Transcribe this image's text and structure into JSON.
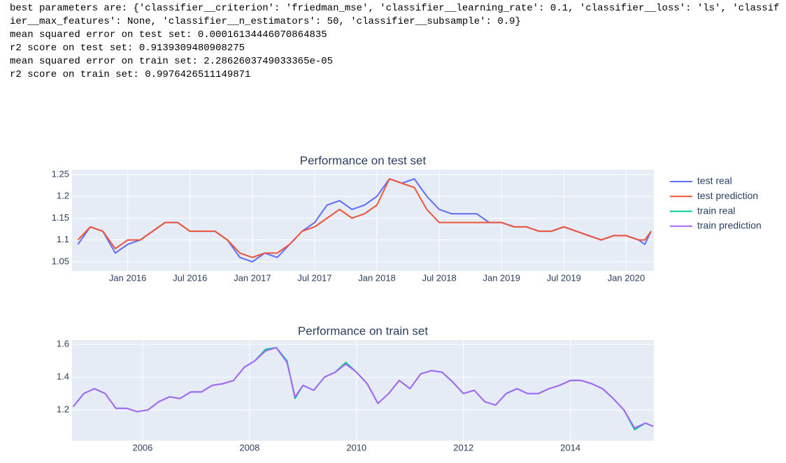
{
  "output": [
    "best parameters are: {'classifier__criterion': 'friedman_mse', 'classifier__learning_rate': 0.1, 'classifier__loss': 'ls', 'classifier__max_features': None, 'classifier__n_estimators': 50, 'classifier__subsample': 0.9}",
    "mean squared error on test set: 0.00016134446070864835",
    "r2 score on test set: 0.9139309480908275",
    "mean squared error on train set: 2.2862603749033365e-05",
    "r2 score on train set: 0.9976426511149871"
  ],
  "chart_data": [
    {
      "type": "line",
      "title": "Performance on test set",
      "x": [
        2015.6,
        2015.7,
        2015.8,
        2015.9,
        2016.0,
        2016.1,
        2016.2,
        2016.3,
        2016.4,
        2016.5,
        2016.6,
        2016.7,
        2016.8,
        2016.9,
        2017.0,
        2017.1,
        2017.2,
        2017.3,
        2017.4,
        2017.5,
        2017.6,
        2017.7,
        2017.8,
        2017.9,
        2018.0,
        2018.1,
        2018.2,
        2018.3,
        2018.4,
        2018.5,
        2018.6,
        2018.7,
        2018.8,
        2018.9,
        2019.0,
        2019.1,
        2019.2,
        2019.3,
        2019.4,
        2019.5,
        2019.6,
        2019.7,
        2019.8,
        2019.9,
        2020.0,
        2020.1,
        2020.15,
        2020.2
      ],
      "series": [
        {
          "name": "test real",
          "color": "#636efa",
          "values": [
            1.09,
            1.13,
            1.12,
            1.07,
            1.09,
            1.1,
            1.12,
            1.14,
            1.14,
            1.12,
            1.12,
            1.12,
            1.1,
            1.06,
            1.05,
            1.07,
            1.06,
            1.09,
            1.12,
            1.14,
            1.18,
            1.19,
            1.17,
            1.18,
            1.2,
            1.24,
            1.23,
            1.24,
            1.2,
            1.17,
            1.16,
            1.16,
            1.16,
            1.14,
            1.14,
            1.13,
            1.13,
            1.12,
            1.12,
            1.13,
            1.12,
            1.11,
            1.1,
            1.11,
            1.11,
            1.1,
            1.09,
            1.12
          ]
        },
        {
          "name": "test prediction",
          "color": "#ef553b",
          "values": [
            1.1,
            1.13,
            1.12,
            1.08,
            1.1,
            1.1,
            1.12,
            1.14,
            1.14,
            1.12,
            1.12,
            1.12,
            1.1,
            1.07,
            1.06,
            1.07,
            1.07,
            1.09,
            1.12,
            1.13,
            1.15,
            1.17,
            1.15,
            1.16,
            1.18,
            1.24,
            1.23,
            1.22,
            1.17,
            1.14,
            1.14,
            1.14,
            1.14,
            1.14,
            1.14,
            1.13,
            1.13,
            1.12,
            1.12,
            1.13,
            1.12,
            1.11,
            1.1,
            1.11,
            1.11,
            1.1,
            1.1,
            1.12
          ]
        }
      ],
      "xlim": [
        2015.553,
        2020.222
      ],
      "xticks": [
        {
          "value": 2016,
          "label": "Jan 2016"
        },
        {
          "value": 2016.5,
          "label": "Jul 2016"
        },
        {
          "value": 2017,
          "label": "Jan 2017"
        },
        {
          "value": 2017.5,
          "label": "Jul 2017"
        },
        {
          "value": 2018,
          "label": "Jan 2018"
        },
        {
          "value": 2018.5,
          "label": "Jul 2018"
        },
        {
          "value": 2019,
          "label": "Jan 2019"
        },
        {
          "value": 2019.5,
          "label": "Jul 2019"
        },
        {
          "value": 2020,
          "label": "Jan 2020"
        }
      ],
      "ylim": [
        1.029,
        1.261
      ],
      "yticks": [
        1.05,
        1.1,
        1.15,
        1.2,
        1.25
      ],
      "grid": true
    },
    {
      "type": "line",
      "title": "Performance on train set",
      "x": [
        2004.7,
        2004.9,
        2005.1,
        2005.3,
        2005.5,
        2005.7,
        2005.9,
        2006.1,
        2006.3,
        2006.5,
        2006.7,
        2006.9,
        2007.1,
        2007.3,
        2007.5,
        2007.7,
        2007.9,
        2008.1,
        2008.3,
        2008.5,
        2008.7,
        2008.85,
        2009.0,
        2009.2,
        2009.4,
        2009.6,
        2009.8,
        2010.0,
        2010.2,
        2010.4,
        2010.6,
        2010.8,
        2011.0,
        2011.2,
        2011.4,
        2011.6,
        2011.8,
        2012.0,
        2012.2,
        2012.4,
        2012.6,
        2012.8,
        2013.0,
        2013.2,
        2013.4,
        2013.6,
        2013.8,
        2014.0,
        2014.2,
        2014.4,
        2014.6,
        2014.8,
        2015.0,
        2015.2,
        2015.4,
        2015.55
      ],
      "series": [
        {
          "name": "train real",
          "color": "#00cc96",
          "values": [
            1.22,
            1.3,
            1.33,
            1.3,
            1.21,
            1.21,
            1.19,
            1.2,
            1.25,
            1.28,
            1.27,
            1.31,
            1.31,
            1.35,
            1.36,
            1.38,
            1.46,
            1.5,
            1.57,
            1.58,
            1.5,
            1.27,
            1.35,
            1.32,
            1.4,
            1.43,
            1.49,
            1.43,
            1.36,
            1.24,
            1.3,
            1.38,
            1.33,
            1.42,
            1.44,
            1.43,
            1.37,
            1.3,
            1.32,
            1.25,
            1.23,
            1.3,
            1.33,
            1.3,
            1.3,
            1.33,
            1.35,
            1.38,
            1.38,
            1.36,
            1.33,
            1.27,
            1.2,
            1.08,
            1.12,
            1.1
          ]
        },
        {
          "name": "train prediction",
          "color": "#ab63fa",
          "values": [
            1.22,
            1.3,
            1.33,
            1.3,
            1.21,
            1.21,
            1.19,
            1.2,
            1.25,
            1.28,
            1.27,
            1.31,
            1.31,
            1.35,
            1.36,
            1.38,
            1.46,
            1.5,
            1.56,
            1.58,
            1.49,
            1.28,
            1.35,
            1.32,
            1.4,
            1.43,
            1.48,
            1.43,
            1.36,
            1.24,
            1.3,
            1.38,
            1.33,
            1.42,
            1.44,
            1.43,
            1.37,
            1.3,
            1.32,
            1.25,
            1.23,
            1.3,
            1.33,
            1.3,
            1.3,
            1.33,
            1.35,
            1.38,
            1.38,
            1.36,
            1.33,
            1.27,
            1.2,
            1.09,
            1.12,
            1.1
          ]
        }
      ],
      "xlim": [
        2004.68,
        2015.56
      ],
      "xticks": [
        2006,
        2008,
        2010,
        2012,
        2014
      ],
      "ylim": [
        1.013,
        1.626
      ],
      "yticks": [
        1.2,
        1.4,
        1.6
      ],
      "grid": true
    }
  ]
}
